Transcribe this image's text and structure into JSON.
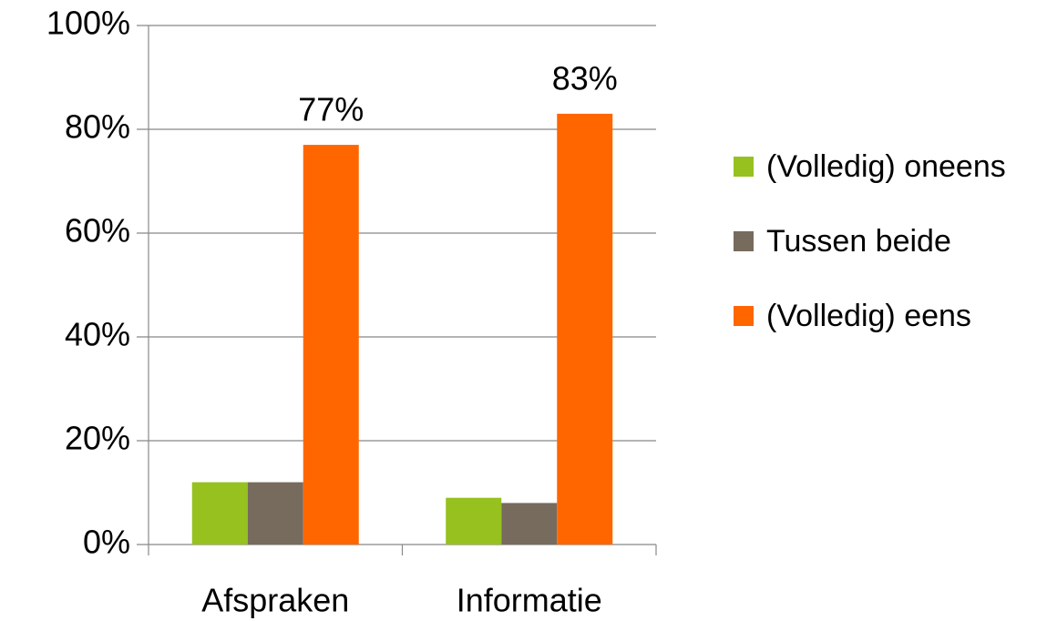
{
  "chart_data": {
    "type": "bar",
    "categories": [
      "Afspraken",
      "Informatie"
    ],
    "series": [
      {
        "name": "(Volledig) oneens",
        "color": "#96c11f",
        "values": [
          12,
          9
        ]
      },
      {
        "name": "Tussen beide",
        "color": "#776b5d",
        "values": [
          12,
          8
        ]
      },
      {
        "name": "(Volledig) eens",
        "color": "#ff6600",
        "values": [
          77,
          83
        ],
        "value_labels": [
          "77%",
          "83%"
        ]
      }
    ],
    "ylim": [
      0,
      100
    ],
    "yticks": [
      {
        "value": 0,
        "label": "0%"
      },
      {
        "value": 20,
        "label": "20%"
      },
      {
        "value": 40,
        "label": "40%"
      },
      {
        "value": 60,
        "label": "60%"
      },
      {
        "value": 80,
        "label": "80%"
      },
      {
        "value": 100,
        "label": "100%"
      }
    ],
    "grid": true,
    "legend": "right"
  }
}
